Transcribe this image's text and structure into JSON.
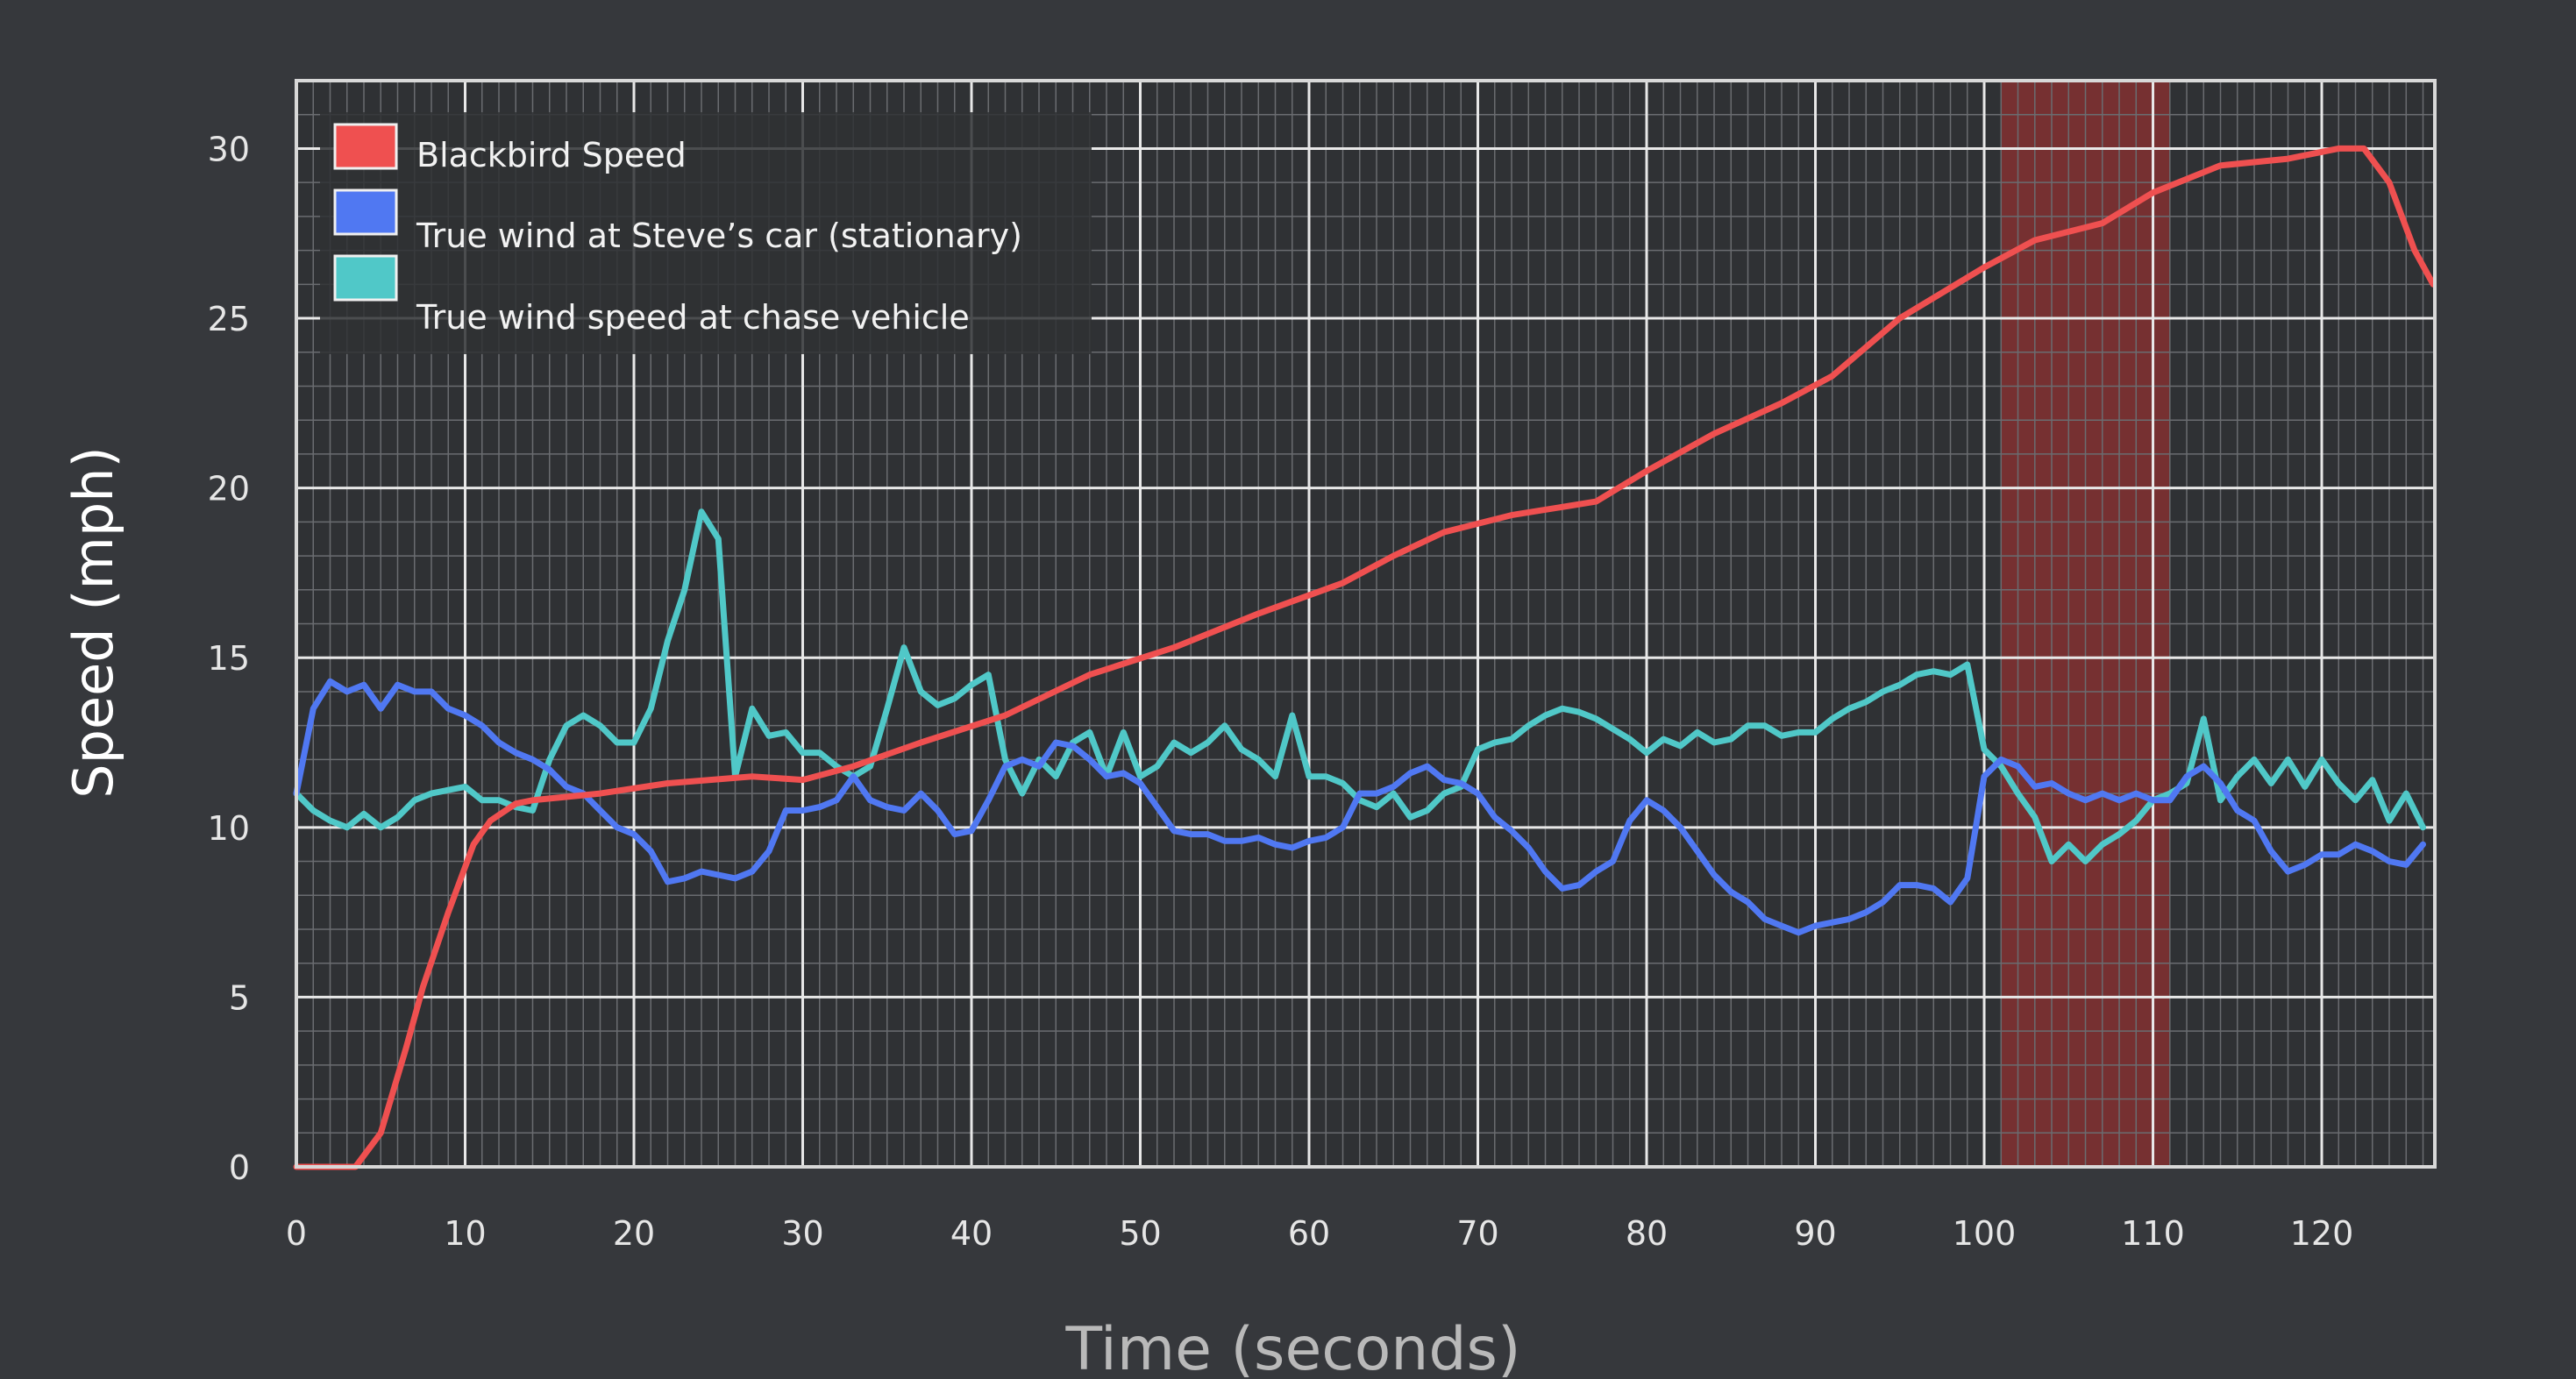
{
  "chart_data": {
    "type": "line",
    "title": "",
    "xlabel": "Time (seconds)",
    "ylabel": "Speed (mph)",
    "xlim": [
      0,
      126.7
    ],
    "ylim": [
      0,
      32
    ],
    "xticks": [
      0,
      10,
      20,
      30,
      40,
      50,
      60,
      70,
      80,
      90,
      100,
      110,
      120
    ],
    "yticks": [
      0,
      5,
      10,
      15,
      20,
      25,
      30
    ],
    "grid": true,
    "legend_position": "top-left",
    "highlight_region": {
      "x": [
        101,
        111
      ],
      "color": "#c0392b"
    },
    "background_color": "#2f3134",
    "series": [
      {
        "name": "Blackbird Speed",
        "color": "#ef5050",
        "x": [
          0,
          3.5,
          5,
          6.5,
          7.5,
          9,
          10.5,
          11.5,
          13,
          14,
          18,
          22,
          27,
          30,
          33,
          37,
          42,
          47,
          52,
          57,
          62,
          65,
          68,
          72,
          77,
          80,
          84,
          88,
          91,
          95,
          100,
          103,
          107,
          110,
          114,
          118,
          121,
          122.5,
          124,
          125.5,
          126.6
        ],
        "y": [
          0,
          0,
          1,
          3.5,
          5.3,
          7.5,
          9.5,
          10.2,
          10.7,
          10.8,
          11,
          11.3,
          11.5,
          11.4,
          11.8,
          12.5,
          13.3,
          14.5,
          15.3,
          16.3,
          17.2,
          18,
          18.7,
          19.2,
          19.6,
          20.5,
          21.6,
          22.5,
          23.3,
          25,
          26.5,
          27.3,
          27.8,
          28.7,
          29.5,
          29.7,
          30,
          30,
          29,
          27,
          26
        ]
      },
      {
        "name": "True wind at Steve’s car (stationary)",
        "color": "#5078f2",
        "x": [
          0,
          1,
          2,
          3,
          4,
          5,
          6,
          7,
          8,
          9,
          10,
          11,
          12,
          13,
          14,
          15,
          16,
          17,
          18,
          19,
          20,
          21,
          22,
          23,
          24,
          25,
          26,
          27,
          28,
          29,
          30,
          31,
          32,
          33,
          34,
          35,
          36,
          37,
          38,
          39,
          40,
          41,
          42,
          43,
          44,
          45,
          46,
          47,
          48,
          49,
          50,
          51,
          52,
          53,
          54,
          55,
          56,
          57,
          58,
          59,
          60,
          61,
          62,
          63,
          64,
          65,
          66,
          67,
          68,
          69,
          70,
          71,
          72,
          73,
          74,
          75,
          76,
          77,
          78,
          79,
          80,
          81,
          82,
          83,
          84,
          85,
          86,
          87,
          88,
          89,
          90,
          91,
          92,
          93,
          94,
          95,
          96,
          97,
          98,
          99,
          100,
          101,
          102,
          103,
          104,
          105,
          106,
          107,
          108,
          109,
          110,
          111,
          112,
          113,
          114,
          115,
          116,
          117,
          118,
          119,
          120,
          121,
          122,
          123,
          124,
          125,
          126
        ],
        "y": [
          11,
          13.5,
          14.3,
          14,
          14.2,
          13.5,
          14.2,
          14,
          14,
          13.5,
          13.3,
          13,
          12.5,
          12.2,
          12,
          11.7,
          11.2,
          11,
          10.5,
          10,
          9.8,
          9.3,
          8.4,
          8.5,
          8.7,
          8.6,
          8.5,
          8.7,
          9.3,
          10.5,
          10.5,
          10.6,
          10.8,
          11.5,
          10.8,
          10.6,
          10.5,
          11,
          10.5,
          9.8,
          9.9,
          10.8,
          11.8,
          12,
          11.8,
          12.5,
          12.4,
          12,
          11.5,
          11.6,
          11.3,
          10.6,
          9.9,
          9.8,
          9.8,
          9.6,
          9.6,
          9.7,
          9.5,
          9.4,
          9.6,
          9.7,
          10,
          11,
          11,
          11.2,
          11.6,
          11.8,
          11.4,
          11.3,
          11,
          10.3,
          9.9,
          9.4,
          8.7,
          8.2,
          8.3,
          8.7,
          9,
          10.2,
          10.8,
          10.5,
          10,
          9.3,
          8.6,
          8.1,
          7.8,
          7.3,
          7.1,
          6.9,
          7.1,
          7.2,
          7.3,
          7.5,
          7.8,
          8.3,
          8.3,
          8.2,
          7.8,
          8.5,
          11.5,
          12,
          11.8,
          11.2,
          11.3,
          11,
          10.8,
          11,
          10.8,
          11,
          10.8,
          10.8,
          11.5,
          11.8,
          11.3,
          10.5,
          10.2,
          9.3,
          8.7,
          8.9,
          9.2,
          9.2,
          9.5,
          9.3,
          9,
          8.9,
          9.5
        ]
      },
      {
        "name": "True wind speed at chase vehicle",
        "color": "#50c8c8",
        "x": [
          0,
          1,
          2,
          3,
          4,
          5,
          6,
          7,
          8,
          9,
          10,
          11,
          12,
          13,
          14,
          15,
          16,
          17,
          18,
          19,
          20,
          21,
          22,
          23,
          24,
          25,
          26,
          27,
          28,
          29,
          30,
          31,
          32,
          33,
          34,
          35,
          36,
          37,
          38,
          39,
          40,
          41,
          42,
          43,
          44,
          45,
          46,
          47,
          48,
          49,
          50,
          51,
          52,
          53,
          54,
          55,
          56,
          57,
          58,
          59,
          60,
          61,
          62,
          63,
          64,
          65,
          66,
          67,
          68,
          69,
          70,
          71,
          72,
          73,
          74,
          75,
          76,
          77,
          78,
          79,
          80,
          81,
          82,
          83,
          84,
          85,
          86,
          87,
          88,
          89,
          90,
          91,
          92,
          93,
          94,
          95,
          96,
          97,
          98,
          99,
          100,
          101,
          102,
          103,
          104,
          105,
          106,
          107,
          108,
          109,
          110,
          111,
          112,
          113,
          114,
          115,
          116,
          117,
          118,
          119,
          120,
          121,
          122,
          123,
          124,
          125,
          126
        ],
        "y": [
          11,
          10.5,
          10.2,
          10,
          10.4,
          10,
          10.3,
          10.8,
          11,
          11.1,
          11.2,
          10.8,
          10.8,
          10.6,
          10.5,
          12,
          13,
          13.3,
          13,
          12.5,
          12.5,
          13.5,
          15.5,
          17,
          19.3,
          18.5,
          11.5,
          13.5,
          12.7,
          12.8,
          12.2,
          12.2,
          11.8,
          11.5,
          11.8,
          13.5,
          15.3,
          14,
          13.6,
          13.8,
          14.2,
          14.5,
          12,
          11,
          12,
          11.5,
          12.5,
          12.8,
          11.5,
          12.8,
          11.5,
          11.8,
          12.5,
          12.2,
          12.5,
          13,
          12.3,
          12,
          11.5,
          13.3,
          11.5,
          11.5,
          11.3,
          10.8,
          10.6,
          11,
          10.3,
          10.5,
          11,
          11.2,
          12.3,
          12.5,
          12.6,
          13,
          13.3,
          13.5,
          13.4,
          13.2,
          12.9,
          12.6,
          12.2,
          12.6,
          12.4,
          12.8,
          12.5,
          12.6,
          13,
          13,
          12.7,
          12.8,
          12.8,
          13.2,
          13.5,
          13.7,
          14,
          14.2,
          14.5,
          14.6,
          14.5,
          14.8,
          12.3,
          11.8,
          11,
          10.3,
          9,
          9.5,
          9,
          9.5,
          9.8,
          10.2,
          10.8,
          11,
          11.3,
          13.2,
          10.8,
          11.5,
          12,
          11.3,
          12,
          11.2,
          12,
          11.3,
          10.8,
          11.4,
          10.2,
          11,
          10
        ]
      }
    ]
  }
}
